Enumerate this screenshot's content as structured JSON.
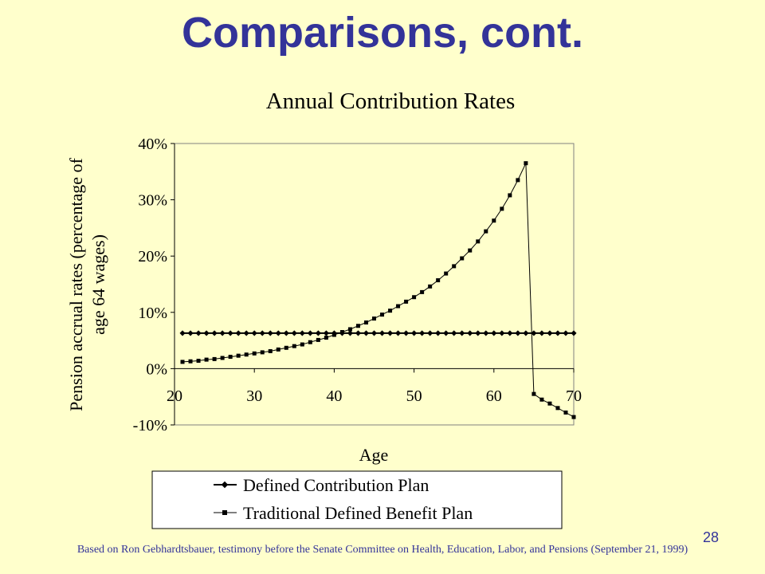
{
  "slide": {
    "title": "Comparisons, cont.",
    "page_number": "28",
    "source_note": "Based on Ron Gebhardtsbauer, testimony before the Senate Committee on Health, Education, Labor, and Pensions (September 21, 1999)"
  },
  "colors": {
    "background": "#ffffcc",
    "title": "#333399",
    "series": "#000000",
    "plot_border": "#808080"
  },
  "chart_data": {
    "type": "line",
    "title": "Annual Contribution Rates",
    "xlabel": "Age",
    "ylabel_lines": [
      "Pension accrual rates (percentage of",
      "age 64 wages)"
    ],
    "xlim": [
      20,
      70
    ],
    "ylim": [
      -0.1,
      0.4
    ],
    "x_ticks": [
      20,
      30,
      40,
      50,
      60,
      70
    ],
    "x_tick_labels": [
      "20",
      "30",
      "40",
      "50",
      "60",
      "70"
    ],
    "y_ticks": [
      -0.1,
      0,
      0.1,
      0.2,
      0.3,
      0.4
    ],
    "y_tick_labels": [
      "-10%",
      "0%",
      "10%",
      "20%",
      "30%",
      "40%"
    ],
    "grid": false,
    "legend_position": "bottom",
    "series": [
      {
        "name": "Defined Contribution Plan",
        "marker": "diamond",
        "x": [
          21,
          22,
          23,
          24,
          25,
          26,
          27,
          28,
          29,
          30,
          31,
          32,
          33,
          34,
          35,
          36,
          37,
          38,
          39,
          40,
          41,
          42,
          43,
          44,
          45,
          46,
          47,
          48,
          49,
          50,
          51,
          52,
          53,
          54,
          55,
          56,
          57,
          58,
          59,
          60,
          61,
          62,
          63,
          64,
          65,
          66,
          67,
          68,
          69,
          70
        ],
        "values": [
          0.063,
          0.063,
          0.063,
          0.063,
          0.063,
          0.063,
          0.063,
          0.063,
          0.063,
          0.063,
          0.063,
          0.063,
          0.063,
          0.063,
          0.063,
          0.063,
          0.063,
          0.063,
          0.063,
          0.063,
          0.063,
          0.063,
          0.063,
          0.063,
          0.063,
          0.063,
          0.063,
          0.063,
          0.063,
          0.063,
          0.063,
          0.063,
          0.063,
          0.063,
          0.063,
          0.063,
          0.063,
          0.063,
          0.063,
          0.063,
          0.063,
          0.063,
          0.063,
          0.063,
          0.063,
          0.063,
          0.063,
          0.063,
          0.063,
          0.063
        ]
      },
      {
        "name": "Traditional Defined Benefit Plan",
        "marker": "square",
        "x": [
          21,
          22,
          23,
          24,
          25,
          26,
          27,
          28,
          29,
          30,
          31,
          32,
          33,
          34,
          35,
          36,
          37,
          38,
          39,
          40,
          41,
          42,
          43,
          44,
          45,
          46,
          47,
          48,
          49,
          50,
          51,
          52,
          53,
          54,
          55,
          56,
          57,
          58,
          59,
          60,
          61,
          62,
          63,
          64,
          65,
          66,
          67,
          68,
          69,
          70
        ],
        "values": [
          0.012,
          0.013,
          0.014,
          0.016,
          0.017,
          0.019,
          0.021,
          0.023,
          0.025,
          0.027,
          0.029,
          0.031,
          0.034,
          0.037,
          0.04,
          0.043,
          0.047,
          0.051,
          0.055,
          0.06,
          0.065,
          0.07,
          0.076,
          0.082,
          0.089,
          0.096,
          0.103,
          0.111,
          0.119,
          0.127,
          0.136,
          0.146,
          0.157,
          0.169,
          0.182,
          0.196,
          0.21,
          0.226,
          0.244,
          0.263,
          0.284,
          0.308,
          0.335,
          0.365,
          -0.045,
          -0.055,
          -0.062,
          -0.07,
          -0.078,
          -0.086
        ]
      }
    ]
  }
}
